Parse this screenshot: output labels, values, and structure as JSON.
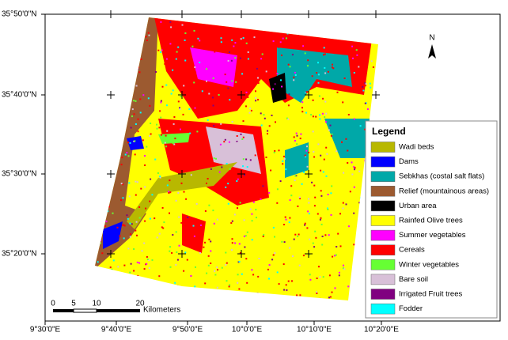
{
  "map": {
    "latitude_labels": [
      "35°50'0\"N",
      "35°40'0\"N",
      "35°30'0\"N",
      "35°20'0\"N"
    ],
    "longitude_labels": [
      "9°30'0\"E",
      "9°40'0\"E",
      "9°50'0\"E",
      "10°0'0\"E",
      "10°10'0\"E",
      "10°20'0\"E"
    ],
    "north_label": "N",
    "scale_bar": {
      "labels": [
        "0",
        "5",
        "10",
        "20"
      ],
      "unit": "Kilometers"
    },
    "legend": {
      "title": "Legend",
      "items": [
        {
          "label": "Wadi beds",
          "color": "#b8b800"
        },
        {
          "label": "Dams",
          "color": "#0000ff"
        },
        {
          "label": "Sebkhas (costal salt flats)",
          "color": "#00a8a8"
        },
        {
          "label": "Relief (mountainous areas)",
          "color": "#9c5a30"
        },
        {
          "label": "Urban area",
          "color": "#000000"
        },
        {
          "label": "Rainfed Olive trees",
          "color": "#ffff00"
        },
        {
          "label": "Summer vegetables",
          "color": "#ff00ff"
        },
        {
          "label": "Cereals",
          "color": "#ff0000"
        },
        {
          "label": "Winter vegetables",
          "color": "#66ff33"
        },
        {
          "label": "Bare soil",
          "color": "#d8c0d8"
        },
        {
          "label": "Irrigated Fruit trees",
          "color": "#800080"
        },
        {
          "label": "Fodder",
          "color": "#00ffff"
        }
      ]
    }
  }
}
